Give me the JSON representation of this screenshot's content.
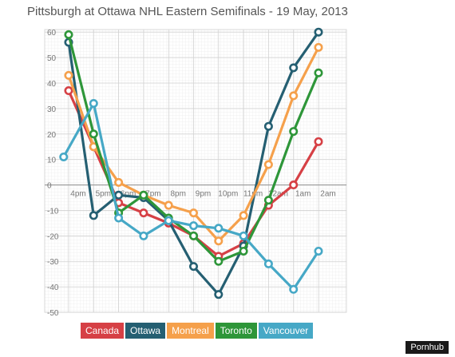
{
  "header": {
    "title": "Pittsburgh at Ottawa NHL Eastern Semifinals - 19 May, 2013"
  },
  "legend": {
    "items": [
      {
        "label": "Canada",
        "color": "#d64045"
      },
      {
        "label": "Ottawa",
        "color": "#255f72"
      },
      {
        "label": "Montreal",
        "color": "#f5a04b"
      },
      {
        "label": "Toronto",
        "color": "#2e9639"
      },
      {
        "label": "Vancouver",
        "color": "#46a8c6"
      }
    ]
  },
  "watermark": "Pornhub",
  "chart_data": {
    "type": "line",
    "title": "Pittsburgh at Ottawa NHL Eastern Semifinals - 19 May, 2013",
    "x_tick_labels": [
      "4pm",
      "5pm",
      "6pm",
      "7pm",
      "8pm",
      "9pm",
      "10pm",
      "11pm",
      "12am",
      "1am",
      "2am"
    ],
    "y_ticks": [
      60,
      50,
      40,
      30,
      20,
      10,
      0,
      -10,
      -20,
      -30,
      -40,
      -50
    ],
    "ylim": [
      -50,
      60
    ],
    "grid": true,
    "legend_placement": "bottom",
    "series": [
      {
        "name": "Canada",
        "color": "#d64045",
        "x": [
          0,
          1,
          2,
          3,
          4,
          5,
          6,
          7,
          8,
          9,
          10
        ],
        "values": [
          37,
          15,
          -7,
          -11,
          -15,
          -20,
          -28,
          -23,
          -8,
          0,
          17
        ]
      },
      {
        "name": "Ottawa",
        "color": "#255f72",
        "x": [
          0,
          1,
          2,
          3,
          4,
          5,
          6,
          7,
          8,
          9,
          10
        ],
        "values": [
          56,
          -12,
          -4,
          -5,
          -14,
          -32,
          -43,
          -24,
          23,
          46,
          60
        ]
      },
      {
        "name": "Montreal",
        "color": "#f5a04b",
        "x": [
          0,
          1,
          2,
          3,
          4,
          5,
          6,
          7,
          8,
          9,
          10
        ],
        "values": [
          43,
          15,
          1,
          -4,
          -8,
          -11,
          -22,
          -12,
          8,
          35,
          54
        ]
      },
      {
        "name": "Toronto",
        "color": "#2e9639",
        "x": [
          0,
          1,
          2,
          3,
          4,
          5,
          6,
          7,
          8,
          9,
          10
        ],
        "values": [
          59,
          20,
          -11,
          -4,
          -13,
          -20,
          -30,
          -26,
          -6,
          21,
          44
        ]
      },
      {
        "name": "Vancouver",
        "color": "#46a8c6",
        "x": [
          -0.2,
          1,
          2,
          3,
          4,
          5,
          6,
          7,
          8,
          9,
          10
        ],
        "values": [
          11,
          32,
          -13,
          -20,
          -14,
          -16,
          -17,
          -20,
          -31,
          -41,
          -26
        ]
      }
    ]
  }
}
